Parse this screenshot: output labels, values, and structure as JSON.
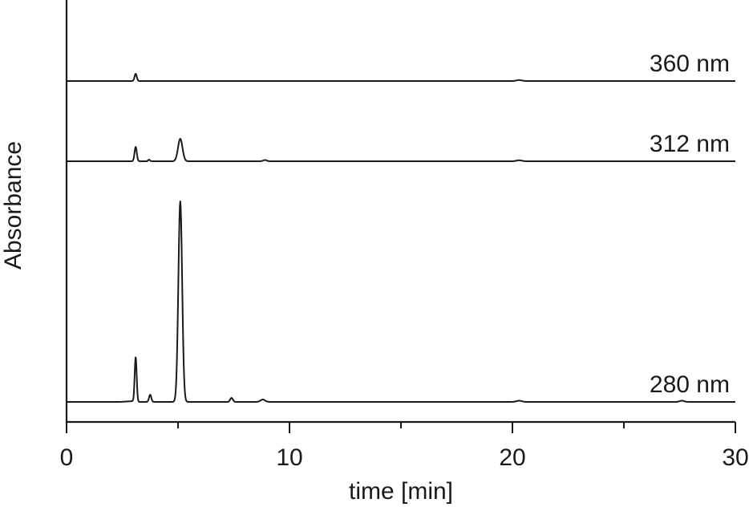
{
  "chart_data": {
    "type": "line",
    "xlabel": "time [min]",
    "ylabel": "Absorbance",
    "xlim": [
      0,
      30
    ],
    "x_ticks": [
      0,
      10,
      20,
      30
    ],
    "x_minor_ticks": [
      5,
      15,
      25
    ],
    "y_tick_labels": false,
    "grid": false,
    "line_color": "#1a1a1a",
    "series": [
      {
        "name": "360 nm",
        "baseline": 0,
        "peaks": [
          {
            "t": 3.1,
            "height": 0.09,
            "width": 0.05
          },
          {
            "t": 20.3,
            "height": 0.012,
            "width": 0.12
          }
        ]
      },
      {
        "name": "312 nm",
        "baseline": 0,
        "peaks": [
          {
            "t": 3.1,
            "height": 0.18,
            "width": 0.05
          },
          {
            "t": 3.7,
            "height": 0.02,
            "width": 0.04
          },
          {
            "t": 5.1,
            "height": 0.28,
            "width": 0.1
          },
          {
            "t": 8.9,
            "height": 0.015,
            "width": 0.08
          },
          {
            "t": 20.3,
            "height": 0.012,
            "width": 0.12
          }
        ]
      },
      {
        "name": "280 nm",
        "baseline": 0,
        "peaks": [
          {
            "t": 3.1,
            "height": 0.56,
            "width": 0.045
          },
          {
            "t": 3.75,
            "height": 0.09,
            "width": 0.05
          },
          {
            "t": 5.1,
            "height": 2.5,
            "width": 0.085
          },
          {
            "t": 7.4,
            "height": 0.05,
            "width": 0.06
          },
          {
            "t": 8.8,
            "height": 0.03,
            "width": 0.1
          },
          {
            "t": 20.3,
            "height": 0.015,
            "width": 0.12
          },
          {
            "t": 27.6,
            "height": 0.015,
            "width": 0.1
          }
        ]
      }
    ]
  }
}
